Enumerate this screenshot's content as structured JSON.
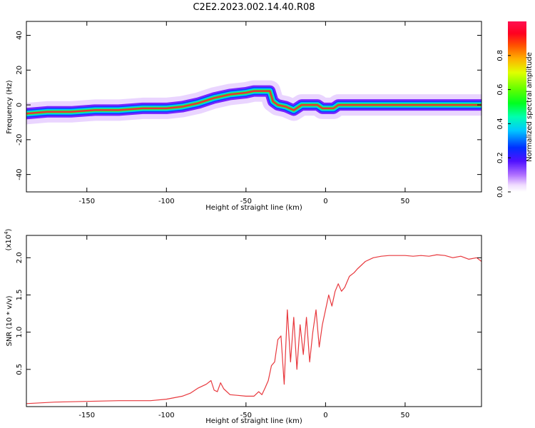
{
  "title": "C2E2.2023.002.14.40.R08",
  "chart_data": [
    {
      "type": "heatmap",
      "title": "C2E2.2023.002.14.40.R08",
      "xlabel": "Height of straight line (km)",
      "ylabel": "Frequency (Hz)",
      "xlim": [
        -188,
        98
      ],
      "ylim": [
        -50,
        48
      ],
      "xticks": [
        -150,
        -100,
        -50,
        0,
        50
      ],
      "yticks": [
        40,
        20,
        0,
        -20,
        -40
      ],
      "colorbar": {
        "label": "Normalized spectral amplitude",
        "range": [
          0.0,
          1.0
        ],
        "ticks": [
          0.0,
          0.2,
          0.4,
          0.6,
          0.8
        ]
      },
      "ridge_x": [
        -188,
        -175,
        -160,
        -145,
        -130,
        -115,
        -100,
        -90,
        -80,
        -70,
        -60,
        -50,
        -45,
        -40,
        -35,
        -33,
        -30,
        -25,
        -20,
        -15,
        -10,
        -5,
        -2,
        0,
        5,
        8,
        10,
        20,
        40,
        60,
        80,
        98
      ],
      "ridge_y": [
        -5,
        -4,
        -4,
        -3,
        -3,
        -2,
        -2,
        -1,
        1,
        4,
        6,
        7,
        8,
        8,
        8,
        2,
        0,
        -1,
        -3,
        0,
        0,
        0,
        -2,
        -2,
        -2,
        0,
        0,
        0,
        0,
        0,
        0,
        0
      ]
    },
    {
      "type": "line",
      "xlabel": "Height of straight line (km)",
      "ylabel": "SNR (10 * v/v)",
      "scale_label": "(x10",
      "scale_exp": "4",
      "scale_close": ")",
      "xlim": [
        -188,
        98
      ],
      "ylim": [
        0,
        2.3
      ],
      "xticks": [
        -150,
        -100,
        -50,
        0,
        50
      ],
      "yticks": [
        0.5,
        1.0,
        1.5,
        2.0
      ],
      "color": "#e8383d",
      "series": [
        {
          "name": "SNR",
          "x": [
            -188,
            -170,
            -150,
            -130,
            -110,
            -100,
            -95,
            -90,
            -85,
            -80,
            -75,
            -72,
            -70,
            -68,
            -66,
            -64,
            -60,
            -55,
            -50,
            -45,
            -42,
            -40,
            -38,
            -36,
            -34,
            -32,
            -30,
            -28,
            -26,
            -24,
            -22,
            -20,
            -18,
            -16,
            -14,
            -12,
            -10,
            -8,
            -6,
            -4,
            -2,
            0,
            2,
            4,
            6,
            8,
            10,
            12,
            15,
            18,
            20,
            25,
            30,
            35,
            40,
            45,
            50,
            55,
            60,
            65,
            70,
            75,
            80,
            85,
            90,
            95,
            98
          ],
          "y": [
            0.04,
            0.06,
            0.07,
            0.08,
            0.08,
            0.1,
            0.12,
            0.14,
            0.18,
            0.25,
            0.3,
            0.35,
            0.22,
            0.2,
            0.32,
            0.24,
            0.16,
            0.15,
            0.14,
            0.14,
            0.2,
            0.16,
            0.25,
            0.35,
            0.55,
            0.6,
            0.9,
            0.95,
            0.3,
            1.3,
            0.6,
            1.2,
            0.5,
            1.1,
            0.7,
            1.2,
            0.6,
            1.0,
            1.3,
            0.8,
            1.1,
            1.3,
            1.5,
            1.35,
            1.55,
            1.65,
            1.55,
            1.6,
            1.75,
            1.8,
            1.85,
            1.95,
            2.0,
            2.02,
            2.03,
            2.03,
            2.03,
            2.02,
            2.03,
            2.02,
            2.04,
            2.03,
            2.0,
            2.02,
            1.98,
            2.0,
            1.95
          ]
        }
      ]
    }
  ]
}
